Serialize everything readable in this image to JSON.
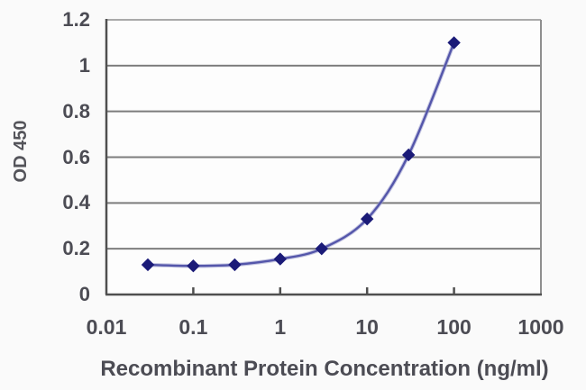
{
  "chart_data": {
    "type": "line",
    "title": "",
    "xlabel": "Recombinant Protein Concentration (ng/ml)",
    "ylabel": "OD 450",
    "x_scale": "log",
    "xlim": [
      0.01,
      1000
    ],
    "ylim": [
      0,
      1.2
    ],
    "grid": "horizontal",
    "legend": "none",
    "x_tick_labels": [
      "0.01",
      "0.1",
      "1",
      "10",
      "100",
      "1000"
    ],
    "x_tick_values": [
      0.01,
      0.1,
      1,
      10,
      100,
      1000
    ],
    "x_minor_tick_values": [
      0.1,
      1,
      10,
      100
    ],
    "y_tick_labels": [
      "0",
      "0.2",
      "0.4",
      "0.6",
      "0.8",
      "1",
      "1.2"
    ],
    "y_tick_values": [
      0,
      0.2,
      0.4,
      0.6,
      0.8,
      1,
      1.2
    ],
    "series": [
      {
        "name": "OD 450",
        "marker": "diamond",
        "x": [
          0.03,
          0.1,
          0.3,
          1,
          3,
          10,
          30,
          100
        ],
        "y": [
          0.13,
          0.125,
          0.13,
          0.155,
          0.2,
          0.33,
          0.61,
          1.1
        ]
      }
    ],
    "colors": {
      "line": "#5456aa",
      "line_halo": "#9b9cce",
      "marker": "#1b1b78",
      "grid": "#7d7d7d",
      "axis": "#4f4f4f",
      "border_top": "#a9a9a9",
      "border_right": "#8f8f8f",
      "text": "#4c4c54",
      "plot_background": "#fdfdfd",
      "figure_background": "#fafafa"
    }
  }
}
